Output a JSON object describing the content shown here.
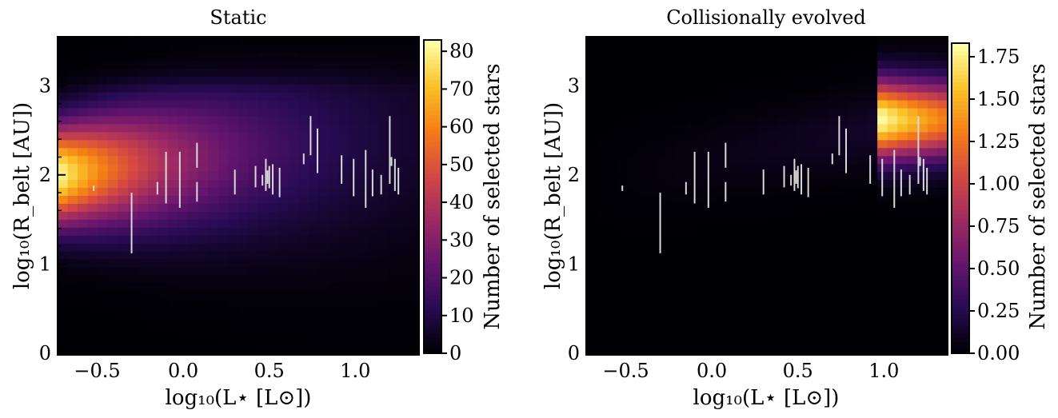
{
  "colors": {
    "colormap": "inferno",
    "bar_color": "#d9d9d9",
    "frame": "#000000"
  },
  "chart_data": [
    {
      "type": "heatmap",
      "title": "Static",
      "xlabel": "log₁₀(L⋆ [L⊙])",
      "ylabel": "log₁₀(R_belt [AU])",
      "xlim": [
        -0.73,
        1.37
      ],
      "ylim": [
        -0.02,
        3.55
      ],
      "xticks": [
        -0.5,
        0.0,
        0.5,
        1.0
      ],
      "xtick_labels": [
        "−0.5",
        "0.0",
        "0.5",
        "1.0"
      ],
      "yticks": [
        0,
        1,
        2,
        3
      ],
      "ytick_labels": [
        "0",
        "1",
        "2",
        "3"
      ],
      "colorbar": {
        "label": "Number of selected stars",
        "min": 0,
        "max": 83,
        "ticks": [
          0,
          10,
          20,
          30,
          40,
          50,
          60,
          70,
          80
        ],
        "tick_labels": [
          "0",
          "10",
          "20",
          "30",
          "40",
          "50",
          "60",
          "70",
          "80"
        ]
      },
      "density_model": {
        "kind": "static",
        "peak_value": 83,
        "peak_x": -0.73,
        "peak_y": 2.0,
        "ridge_slope": 0.22,
        "sigma_y_min": 0.38,
        "sigma_y_growth": 0.25,
        "x_decay": 1.25,
        "upper_cutoff_y": 2.95
      },
      "grid": false
    },
    {
      "type": "heatmap",
      "title": "Collisionally evolved",
      "xlabel": "log₁₀(L⋆ [L⊙])",
      "ylabel": "log₁₀(R_belt [AU])",
      "xlim": [
        -0.73,
        1.37
      ],
      "ylim": [
        -0.02,
        3.55
      ],
      "xticks": [
        -0.5,
        0.0,
        0.5,
        1.0
      ],
      "xtick_labels": [
        "−0.5",
        "0.0",
        "0.5",
        "1.0"
      ],
      "yticks": [
        0,
        1,
        2,
        3
      ],
      "ytick_labels": [
        "0",
        "1",
        "2",
        "3"
      ],
      "colorbar": {
        "label": "Number of selected stars",
        "min": 0.0,
        "max": 1.83,
        "ticks": [
          0.0,
          0.25,
          0.5,
          0.75,
          1.0,
          1.25,
          1.5,
          1.75
        ],
        "tick_labels": [
          "0.00",
          "0.25",
          "0.50",
          "0.75",
          "1.00",
          "1.25",
          "1.50",
          "1.75"
        ]
      },
      "density_model": {
        "kind": "evolved",
        "peak_value": 1.83,
        "bright_x_start": 0.98,
        "bright_center_y": 2.62,
        "bright_sigma_y": 0.3,
        "faint_ridge_value": 0.12,
        "faint_slope": 0.35,
        "faint_sigma_y": 0.3
      },
      "grid": false
    }
  ],
  "data_points": {
    "description_free": true,
    "bars": [
      {
        "x": -0.52,
        "y_lo": 1.82,
        "y_hi": 1.88
      },
      {
        "x": -0.3,
        "y_lo": 1.12,
        "y_hi": 1.8
      },
      {
        "x": -0.15,
        "y_lo": 1.78,
        "y_hi": 1.92
      },
      {
        "x": -0.1,
        "y_lo": 1.68,
        "y_hi": 2.26
      },
      {
        "x": -0.02,
        "y_lo": 1.63,
        "y_hi": 2.26
      },
      {
        "x": 0.08,
        "y_lo": 2.08,
        "y_hi": 2.36
      },
      {
        "x": 0.08,
        "y_lo": 1.7,
        "y_hi": 1.92
      },
      {
        "x": 0.3,
        "y_lo": 1.78,
        "y_hi": 2.06
      },
      {
        "x": 0.42,
        "y_lo": 1.86,
        "y_hi": 2.1
      },
      {
        "x": 0.46,
        "y_lo": 1.88,
        "y_hi": 2.0
      },
      {
        "x": 0.48,
        "y_lo": 1.82,
        "y_hi": 2.18
      },
      {
        "x": 0.49,
        "y_lo": 1.9,
        "y_hi": 2.05
      },
      {
        "x": 0.5,
        "y_lo": 1.85,
        "y_hi": 2.1
      },
      {
        "x": 0.52,
        "y_lo": 1.78,
        "y_hi": 2.12
      },
      {
        "x": 0.56,
        "y_lo": 1.75,
        "y_hi": 2.08
      },
      {
        "x": 0.7,
        "y_lo": 2.12,
        "y_hi": 2.24
      },
      {
        "x": 0.74,
        "y_lo": 2.22,
        "y_hi": 2.66
      },
      {
        "x": 0.78,
        "y_lo": 2.02,
        "y_hi": 2.52
      },
      {
        "x": 0.92,
        "y_lo": 1.9,
        "y_hi": 2.22
      },
      {
        "x": 0.99,
        "y_lo": 1.76,
        "y_hi": 2.18
      },
      {
        "x": 1.06,
        "y_lo": 1.63,
        "y_hi": 2.28
      },
      {
        "x": 1.1,
        "y_lo": 1.76,
        "y_hi": 2.06
      },
      {
        "x": 1.15,
        "y_lo": 1.78,
        "y_hi": 2.0
      },
      {
        "x": 1.2,
        "y_lo": 1.9,
        "y_hi": 2.66
      },
      {
        "x": 1.21,
        "y_lo": 2.1,
        "y_hi": 2.2
      },
      {
        "x": 1.23,
        "y_lo": 1.82,
        "y_hi": 2.18
      },
      {
        "x": 1.25,
        "y_lo": 1.78,
        "y_hi": 2.08
      }
    ]
  }
}
